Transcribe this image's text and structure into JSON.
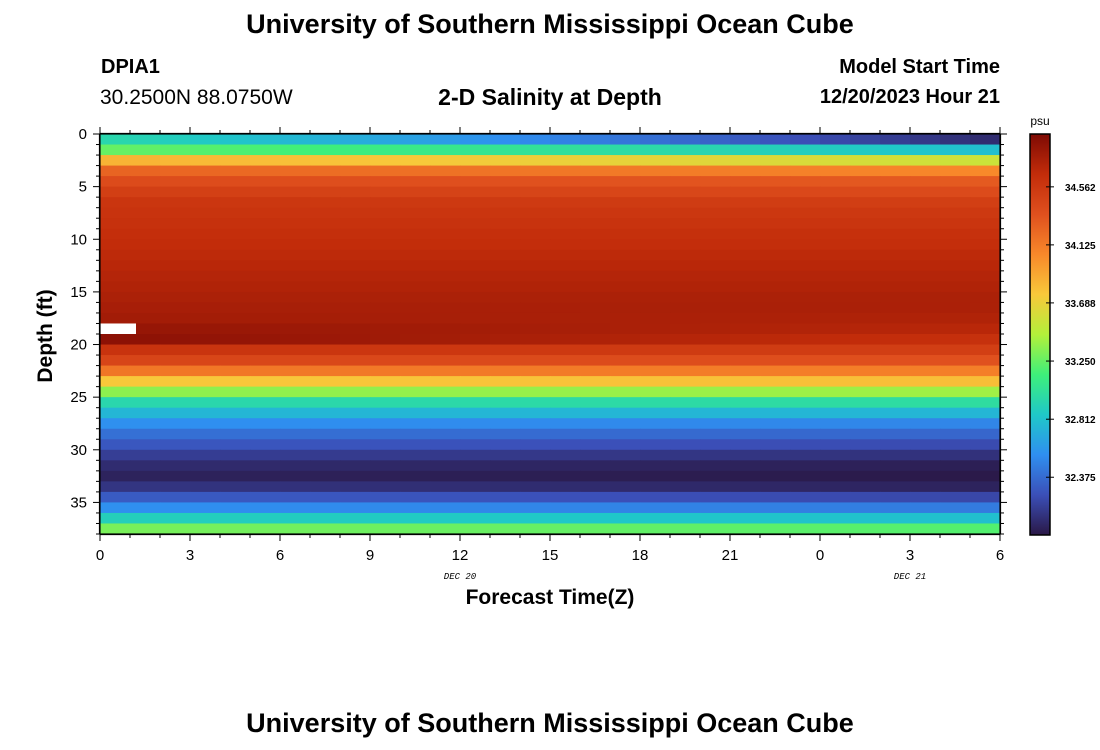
{
  "header": {
    "title": "University of Southern Mississippi Ocean Cube",
    "station_id": "DPIA1",
    "station_coords": "30.2500N  88.0750W",
    "model_start_label": "Model Start Time",
    "model_start_value": "12/20/2023 Hour 21"
  },
  "footer": {
    "title": "University of Southern Mississippi Ocean Cube"
  },
  "chart_data": {
    "type": "heatmap",
    "title": "2-D Salinity at Depth",
    "xlabel": "Forecast Time(Z)",
    "ylabel": "Depth (ft)",
    "x_ticks": [
      "0",
      "3",
      "6",
      "9",
      "12",
      "15",
      "18",
      "21",
      "0",
      "3",
      "6"
    ],
    "x_range_hours": [
      0,
      30
    ],
    "date_labels": [
      {
        "text": "DEC 20",
        "hour": 12
      },
      {
        "text": "DEC 21",
        "hour": 27
      }
    ],
    "y_ticks": [
      "0",
      "5",
      "10",
      "15",
      "20",
      "25",
      "30",
      "35"
    ],
    "y_range_ft": [
      0,
      38
    ],
    "colorbar": {
      "unit": "psu",
      "tick_labels": [
        "34.562",
        "34.125",
        "33.688",
        "33.250",
        "32.812",
        "32.375"
      ],
      "min": 31.94,
      "max": 34.96,
      "colors": [
        "#2a1846",
        "#3b4fb8",
        "#2f8ff0",
        "#1fc8c8",
        "#3ef07a",
        "#b3f03a",
        "#f8c83a",
        "#f8882a",
        "#e0501e",
        "#c22c0a",
        "#7e0a04"
      ]
    },
    "time_columns": 30,
    "depth_profile": [
      {
        "depth_ft": 0.5,
        "start": 32.95,
        "end": 32.05
      },
      {
        "depth_ft": 1.5,
        "start": 33.25,
        "end": 32.8
      },
      {
        "depth_ft": 2.5,
        "start": 33.85,
        "end": 33.55
      },
      {
        "depth_ft": 3.5,
        "start": 34.25,
        "end": 34.05
      },
      {
        "depth_ft": 4.5,
        "start": 34.4,
        "end": 34.3
      },
      {
        "depth_ft": 5.5,
        "start": 34.5,
        "end": 34.4
      },
      {
        "depth_ft": 6.5,
        "start": 34.58,
        "end": 34.5
      },
      {
        "depth_ft": 7.5,
        "start": 34.6,
        "end": 34.55
      },
      {
        "depth_ft": 8.5,
        "start": 34.62,
        "end": 34.58
      },
      {
        "depth_ft": 9.5,
        "start": 34.64,
        "end": 34.62
      },
      {
        "depth_ft": 10.5,
        "start": 34.66,
        "end": 34.64
      },
      {
        "depth_ft": 11.5,
        "start": 34.68,
        "end": 34.68
      },
      {
        "depth_ft": 12.5,
        "start": 34.7,
        "end": 34.7
      },
      {
        "depth_ft": 13.5,
        "start": 34.72,
        "end": 34.72
      },
      {
        "depth_ft": 14.5,
        "start": 34.74,
        "end": 34.74
      },
      {
        "depth_ft": 15.5,
        "start": 34.76,
        "end": 34.76
      },
      {
        "depth_ft": 16.5,
        "start": 34.78,
        "end": 34.76
      },
      {
        "depth_ft": 17.5,
        "start": 34.8,
        "end": 34.74
      },
      {
        "depth_ft": 18.5,
        "start": 34.86,
        "end": 34.7
      },
      {
        "depth_ft": 19.5,
        "start": 34.9,
        "end": 34.62
      },
      {
        "depth_ft": 20.5,
        "start": 34.6,
        "end": 34.5
      },
      {
        "depth_ft": 21.5,
        "start": 34.45,
        "end": 34.35
      },
      {
        "depth_ft": 22.5,
        "start": 34.15,
        "end": 34.1
      },
      {
        "depth_ft": 23.5,
        "start": 33.75,
        "end": 33.8
      },
      {
        "depth_ft": 24.5,
        "start": 33.35,
        "end": 33.4
      },
      {
        "depth_ft": 25.5,
        "start": 32.95,
        "end": 33.0
      },
      {
        "depth_ft": 26.5,
        "start": 32.75,
        "end": 32.75
      },
      {
        "depth_ft": 27.5,
        "start": 32.55,
        "end": 32.5
      },
      {
        "depth_ft": 28.5,
        "start": 32.4,
        "end": 32.35
      },
      {
        "depth_ft": 29.5,
        "start": 32.28,
        "end": 32.22
      },
      {
        "depth_ft": 30.5,
        "start": 32.15,
        "end": 32.08
      },
      {
        "depth_ft": 31.5,
        "start": 32.05,
        "end": 31.98
      },
      {
        "depth_ft": 32.5,
        "start": 32.0,
        "end": 31.95
      },
      {
        "depth_ft": 33.5,
        "start": 32.1,
        "end": 32.0
      },
      {
        "depth_ft": 34.5,
        "start": 32.3,
        "end": 32.2
      },
      {
        "depth_ft": 35.5,
        "start": 32.55,
        "end": 32.45
      },
      {
        "depth_ft": 36.5,
        "start": 32.9,
        "end": 32.8
      },
      {
        "depth_ft": 37.5,
        "start": 33.3,
        "end": 33.2
      }
    ],
    "missing_cells": [
      {
        "time_hour": 0,
        "time_hour_end": 1.2,
        "depth_ft": 18.5
      }
    ]
  }
}
